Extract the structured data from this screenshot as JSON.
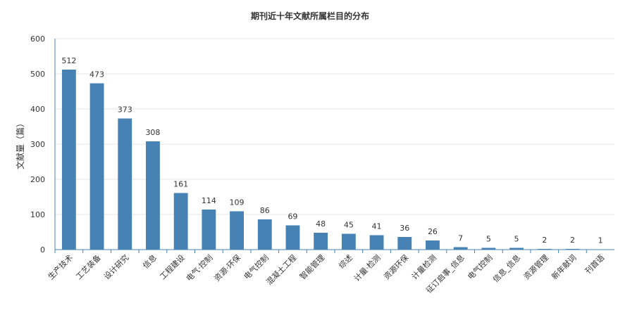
{
  "chart_data": {
    "type": "bar",
    "title": "期刊近十年文献所属栏目的分布",
    "ylabel": "文献量（篇）",
    "xlabel": "",
    "ylim": [
      0,
      600
    ],
    "yticks": [
      0,
      100,
      200,
      300,
      400,
      500,
      600
    ],
    "grid": true,
    "bar_color": "#4682b4",
    "categories": [
      "生产技术",
      "工艺装备",
      "设计研究",
      "信息",
      "工程建设",
      "电气·控制",
      "资源·环保",
      "电气控制",
      "混凝土工程",
      "智能管理",
      "综述",
      "计量·检测",
      "资源环保",
      "计量检测",
      "征订启事_信息",
      "电气控制",
      "信息_信息",
      "资源管理",
      "新年献词",
      "刊首语"
    ],
    "values": [
      512,
      473,
      373,
      308,
      161,
      114,
      109,
      86,
      69,
      48,
      45,
      41,
      36,
      26,
      7,
      5,
      5,
      2,
      2,
      1
    ]
  }
}
